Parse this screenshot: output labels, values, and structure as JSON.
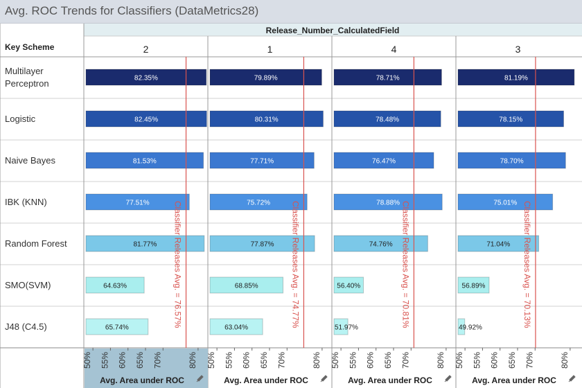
{
  "title": "Avg. ROC Trends for Classifiers (DataMetrics28)",
  "column_header": "Release_Number_CalculatedField",
  "row_header": "Key Scheme",
  "colors": {
    "Multilayer Perceptron": "#1a2b6d",
    "Logistic": "#2553a8",
    "Naive Bayes": "#3b78d0",
    "IBK (KNN)": "#4a91e2",
    "Random Forest": "#7bc8e8",
    "SMO(SVM)": "#a9eeee",
    "J48 (C4.5)": "#b8f3f3",
    "ref_line": "#d9534f"
  },
  "chart_data": {
    "type": "bar",
    "orientation": "horizontal",
    "xlabel": "Avg. Area under ROC",
    "xlim": [
      48,
      82
    ],
    "ticks": [
      "50%",
      "55%",
      "60%",
      "65%",
      "70%",
      "80%"
    ],
    "tick_values": [
      50,
      55,
      60,
      65,
      70,
      80
    ],
    "categories": [
      "Multilayer Perceptron",
      "Logistic",
      "Naive Bayes",
      "IBK (KNN)",
      "Random Forest",
      "SMO(SVM)",
      "J48 (C4.5)"
    ],
    "category_display": [
      [
        "Multilayer",
        "Perceptron"
      ],
      [
        "Logistic"
      ],
      [
        "Naive Bayes"
      ],
      [
        "IBK (KNN)"
      ],
      [
        "Random Forest"
      ],
      [
        "SMO(SVM)"
      ],
      [
        "J48 (C4.5)"
      ]
    ],
    "panels": [
      {
        "release": "2",
        "values": [
          82.35,
          82.45,
          81.53,
          77.51,
          81.77,
          64.63,
          65.74
        ],
        "labels": [
          "82.35%",
          "82.45%",
          "81.53%",
          "77.51%",
          "81.77%",
          "64.63%",
          "65.74%"
        ],
        "reference": 76.57,
        "reference_label": "Classifier Releases Avg. = 76.57%"
      },
      {
        "release": "1",
        "values": [
          79.89,
          80.31,
          77.71,
          75.72,
          77.87,
          68.85,
          63.04
        ],
        "labels": [
          "79.89%",
          "80.31%",
          "77.71%",
          "75.72%",
          "77.87%",
          "68.85%",
          "63.04%"
        ],
        "reference": 74.77,
        "reference_label": "Classifier Releases Avg. = 74.77%"
      },
      {
        "release": "4",
        "values": [
          78.71,
          78.48,
          76.47,
          78.88,
          74.76,
          56.4,
          51.97
        ],
        "labels": [
          "78.71%",
          "78.48%",
          "76.47%",
          "78.88%",
          "74.76%",
          "56.40%",
          "51.97%"
        ],
        "reference": 70.81,
        "reference_label": "Classifier Releases Avg. = 70.81%"
      },
      {
        "release": "3",
        "values": [
          81.19,
          78.15,
          78.7,
          75.01,
          71.04,
          56.89,
          49.92
        ],
        "labels": [
          "81.19%",
          "78.15%",
          "78.70%",
          "75.01%",
          "71.04%",
          "56.89%",
          "49.92%"
        ],
        "reference": 70.13,
        "reference_label": "Classifier Releases Avg. = 70.13%"
      }
    ]
  }
}
